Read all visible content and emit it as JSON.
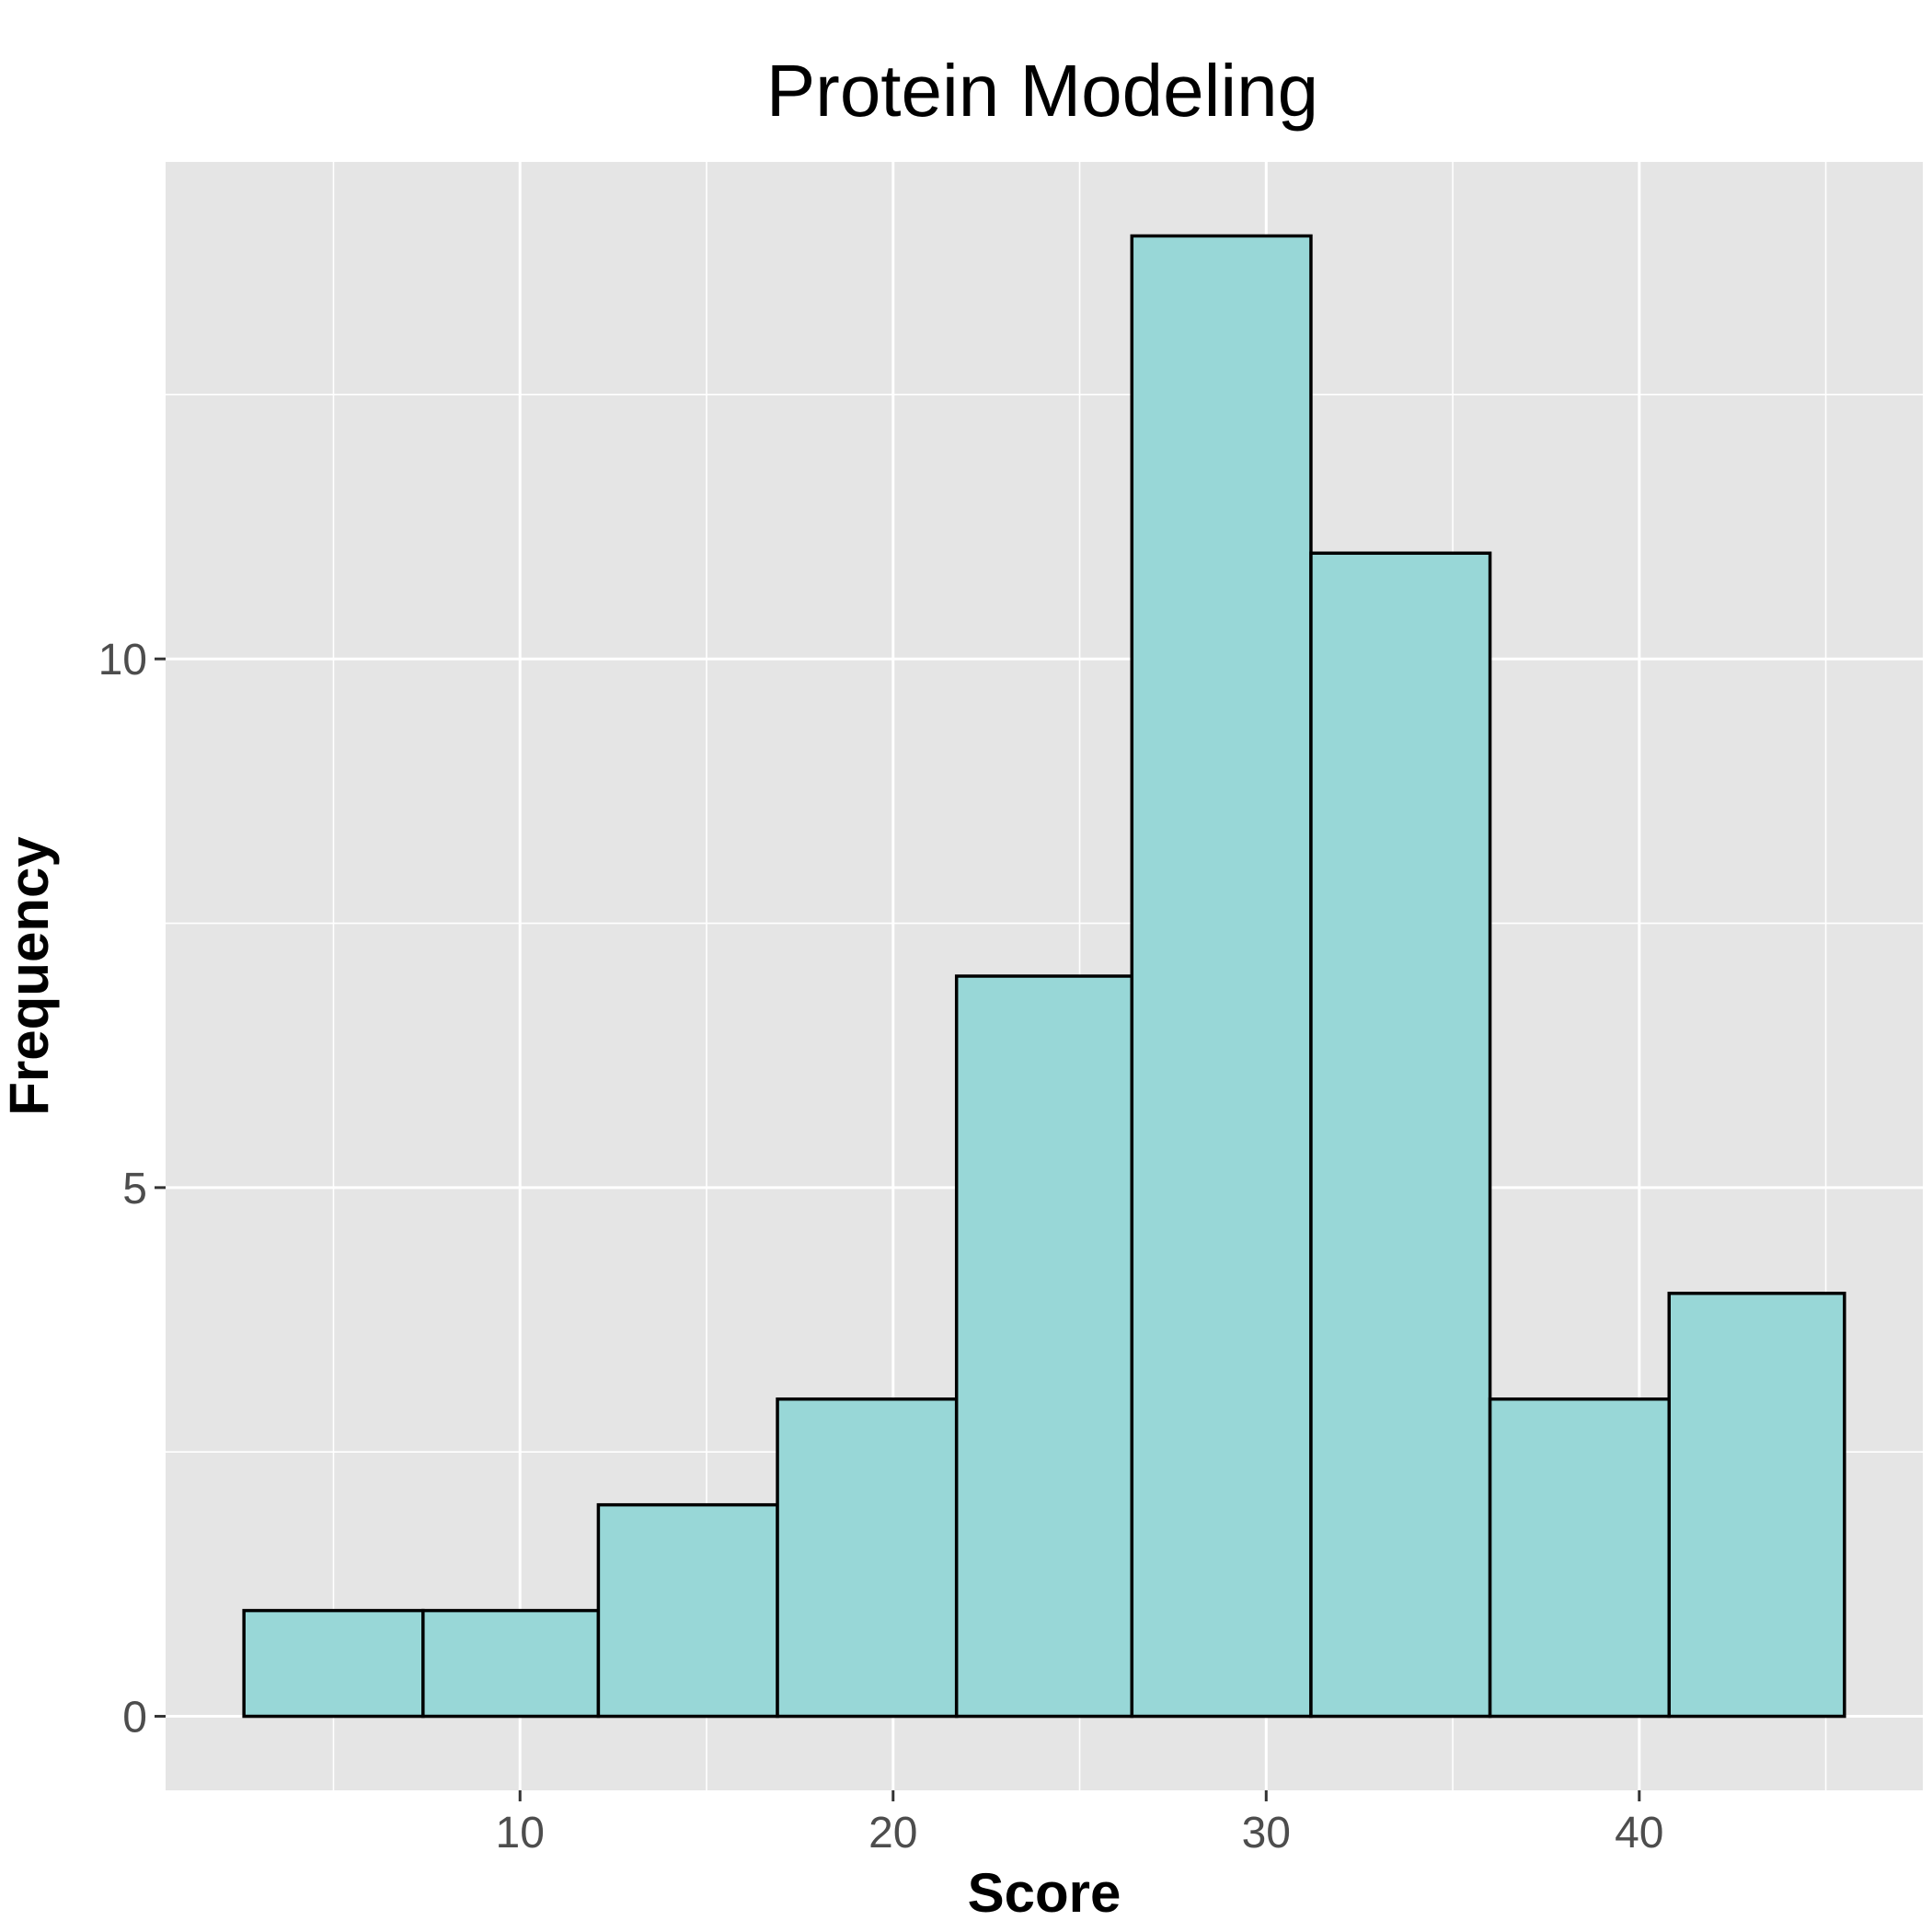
{
  "chart_data": {
    "type": "bar",
    "title": "Protein Modeling",
    "xlabel": "Score",
    "ylabel": "Frequency",
    "bins": [
      {
        "start": 2.6,
        "end": 7.4,
        "count": 1
      },
      {
        "start": 7.4,
        "end": 12.1,
        "count": 1
      },
      {
        "start": 12.1,
        "end": 16.9,
        "count": 2
      },
      {
        "start": 16.9,
        "end": 21.7,
        "count": 3
      },
      {
        "start": 21.7,
        "end": 26.4,
        "count": 7
      },
      {
        "start": 26.4,
        "end": 31.2,
        "count": 14
      },
      {
        "start": 31.2,
        "end": 36.0,
        "count": 11
      },
      {
        "start": 36.0,
        "end": 40.8,
        "count": 3
      },
      {
        "start": 40.8,
        "end": 45.5,
        "count": 4
      }
    ],
    "xlim": [
      0.5,
      47.6
    ],
    "ylim": [
      -0.7,
      14.7
    ],
    "x_ticks": [
      10,
      20,
      30,
      40
    ],
    "x_tick_labels": [
      "10",
      "20",
      "30",
      "40"
    ],
    "x_minor_ticks": [
      5,
      15,
      25,
      35,
      45
    ],
    "y_ticks": [
      0,
      5,
      10
    ],
    "y_tick_labels": [
      "0",
      "5",
      "10"
    ],
    "y_minor_ticks": [
      2.5,
      7.5,
      12.5
    ],
    "grid": true,
    "legend": "none",
    "colors": {
      "panel_background": "#e5e5e5",
      "bar_fill": "#98d7d7",
      "bar_outline": "#000000",
      "grid": "#ffffff"
    }
  }
}
